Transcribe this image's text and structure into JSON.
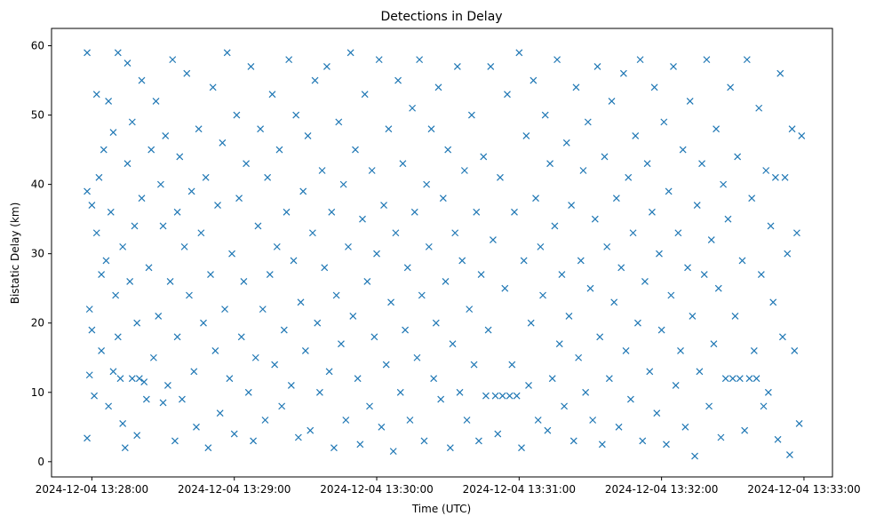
{
  "chart_data": {
    "type": "scatter",
    "title": "Detections in Delay",
    "xlabel": "Time (UTC)",
    "ylabel": "Bistatic Delay (km)",
    "x_units": "seconds after 2024-12-04 13:28:00",
    "xlim": [
      -17,
      312
    ],
    "ylim": [
      -2.2,
      62.5
    ],
    "x_ticks": [
      0,
      60,
      120,
      180,
      240,
      300
    ],
    "x_tick_labels": [
      "2024-12-04 13:28:00",
      "2024-12-04 13:29:00",
      "2024-12-04 13:30:00",
      "2024-12-04 13:31:00",
      "2024-12-04 13:32:00",
      "2024-12-04 13:33:00"
    ],
    "y_ticks": [
      0,
      10,
      20,
      30,
      40,
      50,
      60
    ],
    "y_tick_labels": [
      "0",
      "10",
      "20",
      "30",
      "40",
      "50",
      "60"
    ],
    "marker": "x",
    "color": "#1f77b4",
    "grid": false,
    "series": [
      {
        "name": "detections",
        "points": [
          [
            -2,
            59
          ],
          [
            -2,
            39
          ],
          [
            -2,
            3.4
          ],
          [
            -1,
            22
          ],
          [
            -1,
            12.5
          ],
          [
            0,
            19
          ],
          [
            0,
            37
          ],
          [
            1,
            9.5
          ],
          [
            2,
            53
          ],
          [
            2,
            33
          ],
          [
            3,
            41
          ],
          [
            4,
            27
          ],
          [
            4,
            16
          ],
          [
            5,
            45
          ],
          [
            6,
            29
          ],
          [
            7,
            52
          ],
          [
            7,
            8
          ],
          [
            8,
            36
          ],
          [
            9,
            13
          ],
          [
            9,
            47.5
          ],
          [
            10,
            24
          ],
          [
            11,
            18
          ],
          [
            11,
            59
          ],
          [
            12,
            12
          ],
          [
            13,
            31
          ],
          [
            13,
            5.5
          ],
          [
            14,
            2
          ],
          [
            15,
            43
          ],
          [
            15,
            57.5
          ],
          [
            16,
            26
          ],
          [
            17,
            12
          ],
          [
            17,
            49
          ],
          [
            18,
            34
          ],
          [
            19,
            3.8
          ],
          [
            19,
            20
          ],
          [
            20,
            12
          ],
          [
            21,
            38
          ],
          [
            21,
            55
          ],
          [
            22,
            11.5
          ],
          [
            23,
            9
          ],
          [
            24,
            28
          ],
          [
            25,
            45
          ],
          [
            26,
            15
          ],
          [
            27,
            52
          ],
          [
            28,
            21
          ],
          [
            29,
            40
          ],
          [
            30,
            8.5
          ],
          [
            30,
            34
          ],
          [
            31,
            47
          ],
          [
            32,
            11
          ],
          [
            33,
            26
          ],
          [
            34,
            58
          ],
          [
            35,
            3
          ],
          [
            36,
            18
          ],
          [
            36,
            36
          ],
          [
            37,
            44
          ],
          [
            38,
            9
          ],
          [
            39,
            31
          ],
          [
            40,
            56
          ],
          [
            41,
            24
          ],
          [
            42,
            39
          ],
          [
            43,
            13
          ],
          [
            44,
            5
          ],
          [
            45,
            48
          ],
          [
            46,
            33
          ],
          [
            47,
            20
          ],
          [
            48,
            41
          ],
          [
            49,
            2
          ],
          [
            50,
            27
          ],
          [
            51,
            54
          ],
          [
            52,
            16
          ],
          [
            53,
            37
          ],
          [
            54,
            7
          ],
          [
            55,
            46
          ],
          [
            56,
            22
          ],
          [
            57,
            59
          ],
          [
            58,
            12
          ],
          [
            59,
            30
          ],
          [
            60,
            4
          ],
          [
            61,
            50
          ],
          [
            62,
            38
          ],
          [
            63,
            18
          ],
          [
            64,
            26
          ],
          [
            65,
            43
          ],
          [
            66,
            10
          ],
          [
            67,
            57
          ],
          [
            68,
            3
          ],
          [
            69,
            15
          ],
          [
            70,
            34
          ],
          [
            71,
            48
          ],
          [
            72,
            22
          ],
          [
            73,
            6
          ],
          [
            74,
            41
          ],
          [
            75,
            27
          ],
          [
            76,
            53
          ],
          [
            77,
            14
          ],
          [
            78,
            31
          ],
          [
            79,
            45
          ],
          [
            80,
            8
          ],
          [
            81,
            19
          ],
          [
            82,
            36
          ],
          [
            83,
            58
          ],
          [
            84,
            11
          ],
          [
            85,
            29
          ],
          [
            86,
            50
          ],
          [
            87,
            3.5
          ],
          [
            88,
            23
          ],
          [
            89,
            39
          ],
          [
            90,
            16
          ],
          [
            91,
            47
          ],
          [
            92,
            4.5
          ],
          [
            93,
            33
          ],
          [
            94,
            55
          ],
          [
            95,
            20
          ],
          [
            96,
            10
          ],
          [
            97,
            42
          ],
          [
            98,
            28
          ],
          [
            99,
            57
          ],
          [
            100,
            13
          ],
          [
            101,
            36
          ],
          [
            102,
            2
          ],
          [
            103,
            24
          ],
          [
            104,
            49
          ],
          [
            105,
            17
          ],
          [
            106,
            40
          ],
          [
            107,
            6
          ],
          [
            108,
            31
          ],
          [
            109,
            59
          ],
          [
            110,
            21
          ],
          [
            111,
            45
          ],
          [
            112,
            12
          ],
          [
            113,
            2.5
          ],
          [
            114,
            35
          ],
          [
            115,
            53
          ],
          [
            116,
            26
          ],
          [
            117,
            8
          ],
          [
            118,
            42
          ],
          [
            119,
            18
          ],
          [
            120,
            30
          ],
          [
            121,
            58
          ],
          [
            122,
            5
          ],
          [
            123,
            37
          ],
          [
            124,
            14
          ],
          [
            125,
            48
          ],
          [
            126,
            23
          ],
          [
            127,
            1.5
          ],
          [
            128,
            33
          ],
          [
            129,
            55
          ],
          [
            130,
            10
          ],
          [
            131,
            43
          ],
          [
            132,
            19
          ],
          [
            133,
            28
          ],
          [
            134,
            6
          ],
          [
            135,
            51
          ],
          [
            136,
            36
          ],
          [
            137,
            15
          ],
          [
            138,
            58
          ],
          [
            139,
            24
          ],
          [
            140,
            3
          ],
          [
            141,
            40
          ],
          [
            142,
            31
          ],
          [
            143,
            48
          ],
          [
            144,
            12
          ],
          [
            145,
            20
          ],
          [
            146,
            54
          ],
          [
            147,
            9
          ],
          [
            148,
            38
          ],
          [
            149,
            26
          ],
          [
            150,
            45
          ],
          [
            151,
            2
          ],
          [
            152,
            17
          ],
          [
            153,
            33
          ],
          [
            154,
            57
          ],
          [
            155,
            10
          ],
          [
            156,
            29
          ],
          [
            157,
            42
          ],
          [
            158,
            6
          ],
          [
            159,
            22
          ],
          [
            160,
            50
          ],
          [
            161,
            14
          ],
          [
            162,
            36
          ],
          [
            163,
            3
          ],
          [
            164,
            27
          ],
          [
            165,
            44
          ],
          [
            166,
            9.5
          ],
          [
            167,
            19
          ],
          [
            168,
            57
          ],
          [
            169,
            32
          ],
          [
            170,
            9.5
          ],
          [
            171,
            4
          ],
          [
            172,
            41
          ],
          [
            173,
            9.5
          ],
          [
            174,
            25
          ],
          [
            175,
            53
          ],
          [
            176,
            9.5
          ],
          [
            177,
            14
          ],
          [
            178,
            36
          ],
          [
            179,
            9.5
          ],
          [
            180,
            59
          ],
          [
            181,
            2
          ],
          [
            182,
            29
          ],
          [
            183,
            47
          ],
          [
            184,
            11
          ],
          [
            185,
            20
          ],
          [
            186,
            55
          ],
          [
            187,
            38
          ],
          [
            188,
            6
          ],
          [
            189,
            31
          ],
          [
            190,
            24
          ],
          [
            191,
            50
          ],
          [
            192,
            4.5
          ],
          [
            193,
            43
          ],
          [
            194,
            12
          ],
          [
            195,
            34
          ],
          [
            196,
            58
          ],
          [
            197,
            17
          ],
          [
            198,
            27
          ],
          [
            199,
            8
          ],
          [
            200,
            46
          ],
          [
            201,
            21
          ],
          [
            202,
            37
          ],
          [
            203,
            3
          ],
          [
            204,
            54
          ],
          [
            205,
            15
          ],
          [
            206,
            29
          ],
          [
            207,
            42
          ],
          [
            208,
            10
          ],
          [
            209,
            49
          ],
          [
            210,
            25
          ],
          [
            211,
            6
          ],
          [
            212,
            35
          ],
          [
            213,
            57
          ],
          [
            214,
            18
          ],
          [
            215,
            2.5
          ],
          [
            216,
            44
          ],
          [
            217,
            31
          ],
          [
            218,
            12
          ],
          [
            219,
            52
          ],
          [
            220,
            23
          ],
          [
            221,
            38
          ],
          [
            222,
            5
          ],
          [
            223,
            28
          ],
          [
            224,
            56
          ],
          [
            225,
            16
          ],
          [
            226,
            41
          ],
          [
            227,
            9
          ],
          [
            228,
            33
          ],
          [
            229,
            47
          ],
          [
            230,
            20
          ],
          [
            231,
            58
          ],
          [
            232,
            3
          ],
          [
            233,
            26
          ],
          [
            234,
            43
          ],
          [
            235,
            13
          ],
          [
            236,
            36
          ],
          [
            237,
            54
          ],
          [
            238,
            7
          ],
          [
            239,
            30
          ],
          [
            240,
            19
          ],
          [
            241,
            49
          ],
          [
            242,
            2.5
          ],
          [
            243,
            39
          ],
          [
            244,
            24
          ],
          [
            245,
            57
          ],
          [
            246,
            11
          ],
          [
            247,
            33
          ],
          [
            248,
            16
          ],
          [
            249,
            45
          ],
          [
            250,
            5
          ],
          [
            251,
            28
          ],
          [
            252,
            52
          ],
          [
            253,
            21
          ],
          [
            254,
            0.8
          ],
          [
            255,
            37
          ],
          [
            256,
            13
          ],
          [
            257,
            43
          ],
          [
            258,
            27
          ],
          [
            259,
            58
          ],
          [
            260,
            8
          ],
          [
            261,
            32
          ],
          [
            262,
            17
          ],
          [
            263,
            48
          ],
          [
            264,
            25
          ],
          [
            265,
            3.5
          ],
          [
            266,
            40
          ],
          [
            267,
            12
          ],
          [
            268,
            35
          ],
          [
            269,
            54
          ],
          [
            270,
            12
          ],
          [
            271,
            21
          ],
          [
            272,
            44
          ],
          [
            273,
            12
          ],
          [
            274,
            29
          ],
          [
            275,
            4.5
          ],
          [
            276,
            58
          ],
          [
            277,
            12
          ],
          [
            278,
            38
          ],
          [
            279,
            16
          ],
          [
            280,
            12
          ],
          [
            281,
            51
          ],
          [
            282,
            27
          ],
          [
            283,
            8
          ],
          [
            284,
            42
          ],
          [
            285,
            10
          ],
          [
            286,
            34
          ],
          [
            287,
            23
          ],
          [
            288,
            41
          ],
          [
            289,
            3.2
          ],
          [
            290,
            56
          ],
          [
            291,
            18
          ],
          [
            292,
            41
          ],
          [
            293,
            30
          ],
          [
            294,
            1
          ],
          [
            295,
            48
          ],
          [
            296,
            16
          ],
          [
            297,
            33
          ],
          [
            298,
            5.5
          ],
          [
            299,
            47
          ]
        ]
      }
    ]
  }
}
